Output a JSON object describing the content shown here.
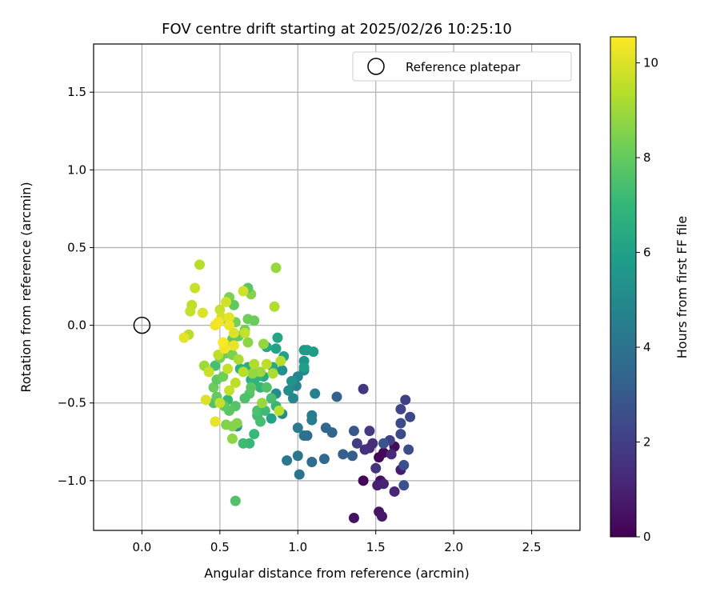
{
  "chart_data": {
    "type": "scatter",
    "title": "FOV centre drift starting at 2025/02/26 10:25:10",
    "xlabel": "Angular distance from reference (arcmin)",
    "ylabel": "Rotation from reference (arcmin)",
    "xlim": [
      -0.31,
      2.81
    ],
    "ylim": [
      -1.32,
      1.81
    ],
    "xticks": [
      0.0,
      0.5,
      1.0,
      1.5,
      2.0,
      2.5
    ],
    "xtick_labels": [
      "0.0",
      "0.5",
      "1.0",
      "1.5",
      "2.0",
      "2.5"
    ],
    "yticks": [
      -1.0,
      -0.5,
      0.0,
      0.5,
      1.0,
      1.5
    ],
    "ytick_labels": [
      "−1.0",
      "−0.5",
      "0.0",
      "0.5",
      "1.0",
      "1.5"
    ],
    "grid": true,
    "legend": {
      "position": "top-right",
      "entries": [
        {
          "label": "Reference platepar",
          "marker": "open-circle"
        }
      ]
    },
    "reference_point": {
      "x": 0.0,
      "y": 0.0
    },
    "colorbar": {
      "label": "Hours from first FF file",
      "colormap": "viridis",
      "range": [
        0,
        10.55
      ],
      "ticks": [
        0,
        2,
        4,
        6,
        8,
        10
      ],
      "tick_labels": [
        "0",
        "2",
        "4",
        "6",
        "8",
        "10"
      ],
      "stops": [
        "#440154",
        "#482878",
        "#3e4989",
        "#31688e",
        "#26828e",
        "#1f9e89",
        "#35b779",
        "#6ece58",
        "#b5de2b",
        "#fde725"
      ]
    },
    "points": [
      {
        "x": 1.42,
        "y": -1.0,
        "c": 0.1
      },
      {
        "x": 1.52,
        "y": -0.85,
        "c": 0.2
      },
      {
        "x": 1.55,
        "y": -0.82,
        "c": 0.25
      },
      {
        "x": 1.62,
        "y": -0.78,
        "c": 0.3
      },
      {
        "x": 1.53,
        "y": -1.0,
        "c": 0.4
      },
      {
        "x": 1.36,
        "y": -1.24,
        "c": 0.5
      },
      {
        "x": 1.52,
        "y": -1.2,
        "c": 0.6
      },
      {
        "x": 1.54,
        "y": -1.23,
        "c": 0.7
      },
      {
        "x": 1.66,
        "y": -0.93,
        "c": 0.8
      },
      {
        "x": 1.51,
        "y": -1.03,
        "c": 0.9
      },
      {
        "x": 1.55,
        "y": -1.02,
        "c": 1.0
      },
      {
        "x": 1.62,
        "y": -1.07,
        "c": 1.1
      },
      {
        "x": 1.6,
        "y": -0.83,
        "c": 1.2
      },
      {
        "x": 1.46,
        "y": -0.79,
        "c": 1.3
      },
      {
        "x": 1.48,
        "y": -0.76,
        "c": 1.4
      },
      {
        "x": 1.43,
        "y": -0.8,
        "c": 1.5
      },
      {
        "x": 1.5,
        "y": -0.92,
        "c": 1.6
      },
      {
        "x": 1.42,
        "y": -0.41,
        "c": 1.7
      },
      {
        "x": 1.46,
        "y": -0.68,
        "c": 1.8
      },
      {
        "x": 1.38,
        "y": -0.76,
        "c": 1.9
      },
      {
        "x": 1.69,
        "y": -0.48,
        "c": 2.0
      },
      {
        "x": 1.59,
        "y": -0.74,
        "c": 2.1
      },
      {
        "x": 1.66,
        "y": -0.54,
        "c": 2.2
      },
      {
        "x": 1.72,
        "y": -0.59,
        "c": 2.3
      },
      {
        "x": 1.66,
        "y": -0.63,
        "c": 2.35
      },
      {
        "x": 1.66,
        "y": -0.7,
        "c": 2.4
      },
      {
        "x": 1.71,
        "y": -0.8,
        "c": 2.5
      },
      {
        "x": 1.68,
        "y": -0.9,
        "c": 2.6
      },
      {
        "x": 1.68,
        "y": -1.03,
        "c": 2.7
      },
      {
        "x": 1.55,
        "y": -0.76,
        "c": 2.8
      },
      {
        "x": 1.36,
        "y": -0.68,
        "c": 2.9
      },
      {
        "x": 1.35,
        "y": -0.84,
        "c": 3.1
      },
      {
        "x": 1.29,
        "y": -0.83,
        "c": 3.2
      },
      {
        "x": 1.25,
        "y": -0.46,
        "c": 3.3
      },
      {
        "x": 1.22,
        "y": -0.69,
        "c": 3.4
      },
      {
        "x": 1.18,
        "y": -0.66,
        "c": 3.5
      },
      {
        "x": 1.17,
        "y": -0.86,
        "c": 3.6
      },
      {
        "x": 1.09,
        "y": -0.88,
        "c": 3.7
      },
      {
        "x": 1.06,
        "y": -0.71,
        "c": 3.8
      },
      {
        "x": 1.04,
        "y": -0.71,
        "c": 3.9
      },
      {
        "x": 1.01,
        "y": -0.96,
        "c": 4.0
      },
      {
        "x": 1.0,
        "y": -0.84,
        "c": 4.1
      },
      {
        "x": 0.93,
        "y": -0.87,
        "c": 4.2
      },
      {
        "x": 1.0,
        "y": -0.66,
        "c": 4.3
      },
      {
        "x": 1.09,
        "y": -0.58,
        "c": 4.4
      },
      {
        "x": 1.09,
        "y": -0.61,
        "c": 4.5
      },
      {
        "x": 1.11,
        "y": -0.44,
        "c": 4.6
      },
      {
        "x": 0.99,
        "y": -0.39,
        "c": 4.7
      },
      {
        "x": 1.0,
        "y": -0.33,
        "c": 4.8
      },
      {
        "x": 1.04,
        "y": -0.29,
        "c": 4.9
      },
      {
        "x": 0.97,
        "y": -0.47,
        "c": 5.0
      },
      {
        "x": 0.9,
        "y": -0.57,
        "c": 5.05
      },
      {
        "x": 0.86,
        "y": -0.44,
        "c": 5.1
      },
      {
        "x": 0.94,
        "y": -0.42,
        "c": 5.2
      },
      {
        "x": 0.9,
        "y": -0.29,
        "c": 5.3
      },
      {
        "x": 0.96,
        "y": -0.36,
        "c": 5.4
      },
      {
        "x": 1.04,
        "y": -0.23,
        "c": 5.5
      },
      {
        "x": 1.04,
        "y": -0.16,
        "c": 5.6
      },
      {
        "x": 1.06,
        "y": -0.16,
        "c": 5.7
      },
      {
        "x": 1.1,
        "y": -0.17,
        "c": 5.8
      },
      {
        "x": 1.04,
        "y": -0.27,
        "c": 5.9
      },
      {
        "x": 0.91,
        "y": -0.2,
        "c": 6.0
      },
      {
        "x": 0.86,
        "y": -0.15,
        "c": 6.1
      },
      {
        "x": 0.87,
        "y": -0.08,
        "c": 6.2
      },
      {
        "x": 0.8,
        "y": -0.14,
        "c": 6.3
      },
      {
        "x": 0.84,
        "y": -0.27,
        "c": 6.4
      },
      {
        "x": 0.78,
        "y": -0.33,
        "c": 6.5
      },
      {
        "x": 0.68,
        "y": -0.27,
        "c": 6.55
      },
      {
        "x": 0.72,
        "y": -0.3,
        "c": 6.6
      },
      {
        "x": 0.63,
        "y": -0.28,
        "c": 6.65
      },
      {
        "x": 0.7,
        "y": -0.35,
        "c": 6.7
      },
      {
        "x": 0.74,
        "y": -0.33,
        "c": 6.8
      },
      {
        "x": 0.72,
        "y": -0.36,
        "c": 6.85
      },
      {
        "x": 0.76,
        "y": -0.4,
        "c": 6.9
      },
      {
        "x": 0.86,
        "y": -0.52,
        "c": 7.0
      },
      {
        "x": 0.83,
        "y": -0.6,
        "c": 6.1
      },
      {
        "x": 0.61,
        "y": -0.65,
        "c": 5.7
      },
      {
        "x": 0.55,
        "y": -0.48,
        "c": 7.0
      },
      {
        "x": 0.69,
        "y": -0.76,
        "c": 7.1
      },
      {
        "x": 0.65,
        "y": -0.76,
        "c": 7.2
      },
      {
        "x": 0.72,
        "y": -0.7,
        "c": 7.1
      },
      {
        "x": 0.74,
        "y": -0.58,
        "c": 7.3
      },
      {
        "x": 0.76,
        "y": -0.62,
        "c": 7.4
      },
      {
        "x": 0.74,
        "y": -0.55,
        "c": 7.5
      },
      {
        "x": 0.79,
        "y": -0.55,
        "c": 7.2
      },
      {
        "x": 0.83,
        "y": -0.47,
        "c": 7.4
      },
      {
        "x": 0.8,
        "y": -0.4,
        "c": 7.6
      },
      {
        "x": 0.69,
        "y": -0.44,
        "c": 7.7
      },
      {
        "x": 0.7,
        "y": -0.4,
        "c": 7.8
      },
      {
        "x": 0.66,
        "y": -0.47,
        "c": 7.5
      },
      {
        "x": 0.6,
        "y": -0.52,
        "c": 7.7
      },
      {
        "x": 0.56,
        "y": -0.55,
        "c": 7.8
      },
      {
        "x": 0.53,
        "y": -0.52,
        "c": 7.9
      },
      {
        "x": 0.46,
        "y": -0.5,
        "c": 7.6
      },
      {
        "x": 0.48,
        "y": -0.46,
        "c": 8.0
      },
      {
        "x": 0.46,
        "y": -0.4,
        "c": 8.1
      },
      {
        "x": 0.48,
        "y": -0.35,
        "c": 7.9
      },
      {
        "x": 0.52,
        "y": -0.33,
        "c": 8.2
      },
      {
        "x": 0.47,
        "y": -0.26,
        "c": 7.4
      },
      {
        "x": 0.5,
        "y": -0.21,
        "c": 8.3
      },
      {
        "x": 0.54,
        "y": -0.18,
        "c": 8.1
      },
      {
        "x": 0.58,
        "y": -0.19,
        "c": 8.4
      },
      {
        "x": 0.62,
        "y": -0.07,
        "c": 8.0
      },
      {
        "x": 0.58,
        "y": -0.09,
        "c": 7.9
      },
      {
        "x": 0.66,
        "y": -0.03,
        "c": 8.3
      },
      {
        "x": 0.68,
        "y": 0.04,
        "c": 8.2
      },
      {
        "x": 0.7,
        "y": 0.2,
        "c": 8.6
      },
      {
        "x": 0.68,
        "y": 0.24,
        "c": 7.8
      },
      {
        "x": 0.56,
        "y": 0.18,
        "c": 8.4
      },
      {
        "x": 0.55,
        "y": 0.03,
        "c": 8.5
      },
      {
        "x": 0.6,
        "y": 0.02,
        "c": 8.3
      },
      {
        "x": 0.59,
        "y": 0.13,
        "c": 7.9
      },
      {
        "x": 0.72,
        "y": 0.03,
        "c": 8.1
      },
      {
        "x": 0.61,
        "y": -0.63,
        "c": 8.6
      },
      {
        "x": 0.6,
        "y": -1.13,
        "c": 7.6
      },
      {
        "x": 0.58,
        "y": -0.65,
        "c": 8.6
      },
      {
        "x": 0.58,
        "y": -0.73,
        "c": 8.7
      },
      {
        "x": 0.54,
        "y": -0.64,
        "c": 8.5
      },
      {
        "x": 0.78,
        "y": -0.12,
        "c": 8.8
      },
      {
        "x": 0.77,
        "y": -0.5,
        "c": 8.9
      },
      {
        "x": 0.76,
        "y": -0.3,
        "c": 9.0
      },
      {
        "x": 0.71,
        "y": -0.31,
        "c": 8.8
      },
      {
        "x": 0.68,
        "y": -0.11,
        "c": 8.7
      },
      {
        "x": 0.86,
        "y": 0.37,
        "c": 8.9
      },
      {
        "x": 0.85,
        "y": 0.12,
        "c": 9.3
      },
      {
        "x": 0.84,
        "y": -0.31,
        "c": 9.2
      },
      {
        "x": 0.89,
        "y": -0.23,
        "c": 9.4
      },
      {
        "x": 0.88,
        "y": -0.55,
        "c": 9.5
      },
      {
        "x": 0.8,
        "y": -0.25,
        "c": 9.5
      },
      {
        "x": 0.72,
        "y": -0.25,
        "c": 9.3
      },
      {
        "x": 0.65,
        "y": -0.3,
        "c": 9.4
      },
      {
        "x": 0.6,
        "y": -0.37,
        "c": 9.5
      },
      {
        "x": 0.62,
        "y": -0.22,
        "c": 9.2
      },
      {
        "x": 0.55,
        "y": -0.28,
        "c": 9.6
      },
      {
        "x": 0.53,
        "y": -0.12,
        "c": 9.8
      },
      {
        "x": 0.49,
        "y": -0.19,
        "c": 9.5
      },
      {
        "x": 0.4,
        "y": -0.26,
        "c": 9.0
      },
      {
        "x": 0.43,
        "y": -0.3,
        "c": 9.7
      },
      {
        "x": 0.41,
        "y": -0.48,
        "c": 10.0
      },
      {
        "x": 0.47,
        "y": -0.62,
        "c": 10.2
      },
      {
        "x": 0.5,
        "y": -0.5,
        "c": 9.6
      },
      {
        "x": 0.56,
        "y": -0.42,
        "c": 9.6
      },
      {
        "x": 0.37,
        "y": 0.39,
        "c": 9.4
      },
      {
        "x": 0.34,
        "y": 0.24,
        "c": 9.7
      },
      {
        "x": 0.32,
        "y": 0.13,
        "c": 9.5
      },
      {
        "x": 0.31,
        "y": 0.09,
        "c": 9.6
      },
      {
        "x": 0.39,
        "y": 0.08,
        "c": 10.0
      },
      {
        "x": 0.3,
        "y": -0.06,
        "c": 9.4
      },
      {
        "x": 0.27,
        "y": -0.08,
        "c": 10.1
      },
      {
        "x": 0.47,
        "y": -0.0,
        "c": 10.3
      },
      {
        "x": 0.5,
        "y": 0.1,
        "c": 9.7
      },
      {
        "x": 0.51,
        "y": 0.05,
        "c": 9.9
      },
      {
        "x": 0.49,
        "y": 0.02,
        "c": 10.4
      },
      {
        "x": 0.54,
        "y": 0.15,
        "c": 9.8
      },
      {
        "x": 0.56,
        "y": 0.05,
        "c": 10.1
      },
      {
        "x": 0.56,
        "y": 0.0,
        "c": 10.3
      },
      {
        "x": 0.59,
        "y": -0.05,
        "c": 10.0
      },
      {
        "x": 0.65,
        "y": 0.22,
        "c": 9.8
      },
      {
        "x": 0.66,
        "y": -0.05,
        "c": 9.6
      },
      {
        "x": 0.59,
        "y": -0.13,
        "c": 10.2
      },
      {
        "x": 0.53,
        "y": -0.15,
        "c": 10.4
      },
      {
        "x": 0.52,
        "y": -0.11,
        "c": 10.5
      }
    ]
  }
}
